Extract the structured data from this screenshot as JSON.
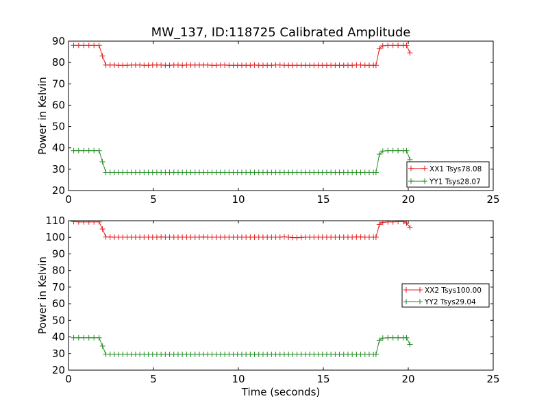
{
  "title": "MW_137, ID:118725 Calibrated Amplitude",
  "chart_data": [
    {
      "type": "line",
      "title": "MW_137, ID:118725 Calibrated Amplitude",
      "xlabel": "",
      "ylabel": "Power in Kelvin",
      "xlim": [
        0,
        25
      ],
      "ylim": [
        20,
        90
      ],
      "xticks": [
        0,
        5,
        10,
        15,
        20,
        25
      ],
      "yticks": [
        20,
        30,
        40,
        50,
        60,
        70,
        80,
        90
      ],
      "grid": false,
      "legend_position": "lower-right",
      "marker": "+",
      "series": [
        {
          "name": "XX1 Tsys78.08",
          "color": "#e41a1c",
          "x": [
            0.3,
            0.6,
            0.9,
            1.2,
            1.5,
            1.8,
            2.0,
            2.2,
            2.45,
            2.7,
            2.95,
            3.2,
            3.45,
            3.7,
            3.95,
            4.2,
            4.45,
            4.7,
            4.95,
            5.2,
            5.45,
            5.7,
            5.95,
            6.2,
            6.45,
            6.7,
            6.95,
            7.2,
            7.45,
            7.7,
            7.95,
            8.2,
            8.45,
            8.7,
            8.95,
            9.2,
            9.45,
            9.7,
            9.95,
            10.2,
            10.45,
            10.7,
            10.95,
            11.2,
            11.45,
            11.7,
            11.95,
            12.2,
            12.45,
            12.7,
            12.95,
            13.2,
            13.45,
            13.7,
            13.95,
            14.2,
            14.45,
            14.7,
            14.95,
            15.2,
            15.45,
            15.7,
            15.95,
            16.2,
            16.45,
            16.7,
            16.95,
            17.2,
            17.45,
            17.7,
            17.95,
            18.1,
            18.3,
            18.5,
            18.8,
            19.1,
            19.4,
            19.7,
            19.9,
            20.1
          ],
          "y": [
            88,
            88,
            88,
            88,
            88,
            88,
            83,
            78.8,
            78.8,
            78.8,
            78.7,
            78.7,
            78.7,
            78.8,
            78.8,
            78.8,
            78.7,
            78.7,
            78.8,
            78.8,
            78.8,
            78.7,
            78.7,
            78.8,
            78.8,
            78.7,
            78.8,
            78.8,
            78.8,
            78.8,
            78.8,
            78.8,
            78.7,
            78.7,
            78.8,
            78.8,
            78.7,
            78.7,
            78.7,
            78.7,
            78.7,
            78.7,
            78.8,
            78.7,
            78.7,
            78.7,
            78.7,
            78.8,
            78.8,
            78.7,
            78.7,
            78.7,
            78.7,
            78.7,
            78.7,
            78.7,
            78.7,
            78.7,
            78.7,
            78.7,
            78.7,
            78.7,
            78.7,
            78.7,
            78.7,
            78.7,
            78.8,
            78.8,
            78.7,
            78.7,
            78.7,
            78.7,
            86.5,
            87.8,
            88,
            88,
            88,
            88,
            88,
            84.5
          ]
        },
        {
          "name": "YY1 Tsys28.07",
          "color": "#228b22",
          "x": [
            0.3,
            0.6,
            0.9,
            1.2,
            1.5,
            1.8,
            2.0,
            2.2,
            2.45,
            2.7,
            2.95,
            3.2,
            3.45,
            3.7,
            3.95,
            4.2,
            4.45,
            4.7,
            4.95,
            5.2,
            5.45,
            5.7,
            5.95,
            6.2,
            6.45,
            6.7,
            6.95,
            7.2,
            7.45,
            7.7,
            7.95,
            8.2,
            8.45,
            8.7,
            8.95,
            9.2,
            9.45,
            9.7,
            9.95,
            10.2,
            10.45,
            10.7,
            10.95,
            11.2,
            11.45,
            11.7,
            11.95,
            12.2,
            12.45,
            12.7,
            12.95,
            13.2,
            13.45,
            13.7,
            13.95,
            14.2,
            14.45,
            14.7,
            14.95,
            15.2,
            15.45,
            15.7,
            15.95,
            16.2,
            16.45,
            16.7,
            16.95,
            17.2,
            17.45,
            17.7,
            17.95,
            18.1,
            18.3,
            18.5,
            18.8,
            19.1,
            19.4,
            19.7,
            19.9,
            20.1
          ],
          "y": [
            38.7,
            38.7,
            38.7,
            38.7,
            38.7,
            38.7,
            33.5,
            28.5,
            28.5,
            28.5,
            28.5,
            28.5,
            28.5,
            28.5,
            28.5,
            28.5,
            28.5,
            28.5,
            28.5,
            28.5,
            28.5,
            28.5,
            28.5,
            28.5,
            28.5,
            28.5,
            28.5,
            28.5,
            28.5,
            28.5,
            28.5,
            28.5,
            28.5,
            28.5,
            28.5,
            28.5,
            28.5,
            28.5,
            28.5,
            28.5,
            28.5,
            28.5,
            28.5,
            28.5,
            28.5,
            28.5,
            28.5,
            28.5,
            28.5,
            28.5,
            28.5,
            28.5,
            28.5,
            28.5,
            28.5,
            28.5,
            28.5,
            28.5,
            28.5,
            28.5,
            28.5,
            28.5,
            28.5,
            28.5,
            28.5,
            28.5,
            28.5,
            28.5,
            28.5,
            28.5,
            28.5,
            28.5,
            37,
            38.5,
            38.7,
            38.7,
            38.7,
            38.7,
            38.7,
            34.5
          ]
        }
      ]
    },
    {
      "type": "line",
      "title": "",
      "xlabel": "Time (seconds)",
      "ylabel": "Power in Kelvin",
      "xlim": [
        0,
        25
      ],
      "ylim": [
        20,
        110
      ],
      "xticks": [
        0,
        5,
        10,
        15,
        20,
        25
      ],
      "yticks": [
        20,
        30,
        40,
        50,
        60,
        70,
        80,
        90,
        100,
        110
      ],
      "grid": false,
      "legend_position": "center-right",
      "marker": "+",
      "series": [
        {
          "name": "XX2 Tsys100.00",
          "color": "#e41a1c",
          "x": [
            0.3,
            0.6,
            0.9,
            1.2,
            1.5,
            1.8,
            2.0,
            2.2,
            2.45,
            2.7,
            2.95,
            3.2,
            3.45,
            3.7,
            3.95,
            4.2,
            4.45,
            4.7,
            4.95,
            5.2,
            5.45,
            5.7,
            5.95,
            6.2,
            6.45,
            6.7,
            6.95,
            7.2,
            7.45,
            7.7,
            7.95,
            8.2,
            8.45,
            8.7,
            8.95,
            9.2,
            9.45,
            9.7,
            9.95,
            10.2,
            10.45,
            10.7,
            10.95,
            11.2,
            11.45,
            11.7,
            11.95,
            12.2,
            12.45,
            12.7,
            12.95,
            13.2,
            13.45,
            13.7,
            13.95,
            14.2,
            14.45,
            14.7,
            14.95,
            15.2,
            15.45,
            15.7,
            15.95,
            16.2,
            16.45,
            16.7,
            16.95,
            17.2,
            17.45,
            17.7,
            17.95,
            18.1,
            18.3,
            18.5,
            18.8,
            19.1,
            19.4,
            19.7,
            19.9,
            20.1
          ],
          "y": [
            109.5,
            109.3,
            109.3,
            109.3,
            109.3,
            109.3,
            105,
            100.2,
            100.2,
            100.1,
            100.1,
            100.1,
            100.1,
            100.1,
            100.1,
            100.1,
            100.1,
            100.1,
            100.1,
            100.1,
            100.2,
            100.1,
            100.1,
            100.1,
            100.1,
            100.1,
            100.1,
            100.1,
            100.1,
            100.1,
            100.2,
            100.1,
            100.1,
            100.1,
            100.1,
            100.1,
            100.1,
            100.1,
            100.1,
            100.1,
            100.1,
            100.1,
            100.1,
            100.1,
            100.1,
            100.1,
            100.1,
            100.1,
            100.1,
            100.3,
            100.1,
            99.9,
            99.8,
            100,
            100.1,
            100.1,
            100.1,
            100.1,
            100.1,
            100.1,
            100.1,
            100.1,
            100.1,
            100.1,
            100.1,
            100.1,
            100.2,
            100.2,
            100.1,
            100.1,
            100.1,
            100.1,
            107.8,
            109,
            109.3,
            109.3,
            109.5,
            109.5,
            108.5,
            106
          ]
        },
        {
          "name": "YY2 Tsys29.04",
          "color": "#228b22",
          "x": [
            0.3,
            0.6,
            0.9,
            1.2,
            1.5,
            1.8,
            2.0,
            2.2,
            2.45,
            2.7,
            2.95,
            3.2,
            3.45,
            3.7,
            3.95,
            4.2,
            4.45,
            4.7,
            4.95,
            5.2,
            5.45,
            5.7,
            5.95,
            6.2,
            6.45,
            6.7,
            6.95,
            7.2,
            7.45,
            7.7,
            7.95,
            8.2,
            8.45,
            8.7,
            8.95,
            9.2,
            9.45,
            9.7,
            9.95,
            10.2,
            10.45,
            10.7,
            10.95,
            11.2,
            11.45,
            11.7,
            11.95,
            12.2,
            12.45,
            12.7,
            12.95,
            13.2,
            13.45,
            13.7,
            13.95,
            14.2,
            14.45,
            14.7,
            14.95,
            15.2,
            15.45,
            15.7,
            15.95,
            16.2,
            16.45,
            16.7,
            16.95,
            17.2,
            17.45,
            17.7,
            17.95,
            18.1,
            18.3,
            18.5,
            18.8,
            19.1,
            19.4,
            19.7,
            19.9,
            20.1
          ],
          "y": [
            39.5,
            39.5,
            39.5,
            39.5,
            39.5,
            39.5,
            34.5,
            29.5,
            29.5,
            29.5,
            29.5,
            29.5,
            29.5,
            29.5,
            29.5,
            29.5,
            29.5,
            29.5,
            29.5,
            29.5,
            29.5,
            29.5,
            29.5,
            29.5,
            29.5,
            29.5,
            29.5,
            29.5,
            29.5,
            29.5,
            29.5,
            29.5,
            29.5,
            29.5,
            29.5,
            29.5,
            29.5,
            29.5,
            29.5,
            29.5,
            29.5,
            29.5,
            29.5,
            29.5,
            29.5,
            29.5,
            29.5,
            29.5,
            29.5,
            29.5,
            29.5,
            29.5,
            29.5,
            29.5,
            29.5,
            29.5,
            29.5,
            29.5,
            29.5,
            29.5,
            29.5,
            29.5,
            29.5,
            29.5,
            29.5,
            29.5,
            29.5,
            29.5,
            29.5,
            29.5,
            29.5,
            29.5,
            38,
            39.3,
            39.5,
            39.5,
            39.5,
            39.5,
            39.5,
            35.5
          ]
        }
      ]
    }
  ]
}
